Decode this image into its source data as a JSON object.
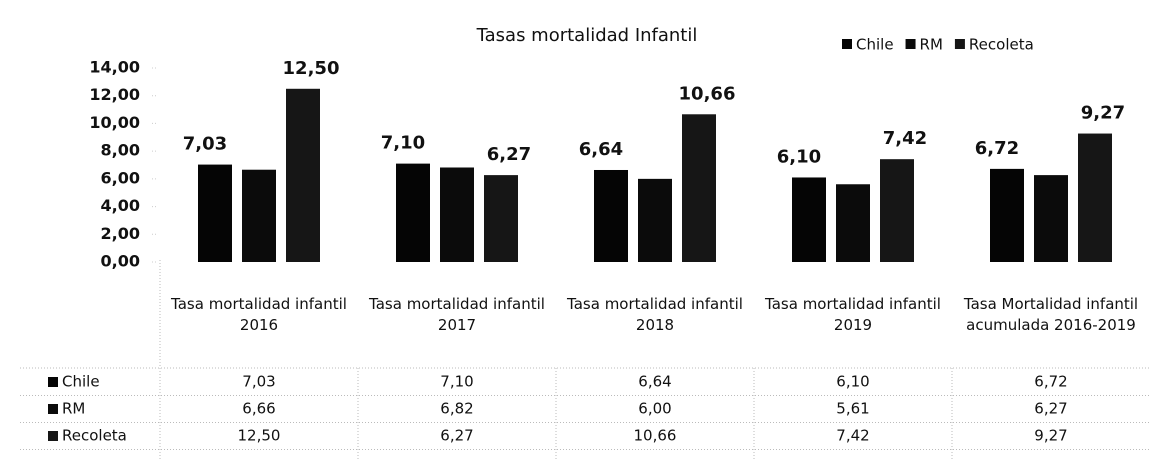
{
  "chart_data": {
    "type": "bar",
    "title": "Tasas mortalidad Infantil",
    "categories": [
      "Tasa mortalidad infantil 2016",
      "Tasa mortalidad infantil 2017",
      "Tasa mortalidad infantil 2018",
      "Tasa mortalidad infantil 2019",
      "Tasa Mortalidad infantil acumulada 2016-2019"
    ],
    "series": [
      {
        "name": "Chile",
        "color": "#050505",
        "show_labels": true,
        "values": [
          7.03,
          7.1,
          6.64,
          6.1,
          6.72
        ],
        "value_labels": [
          "7,03",
          "7,10",
          "6,64",
          "6,10",
          "6,72"
        ]
      },
      {
        "name": "RM",
        "color": "#0b0b0b",
        "show_labels": false,
        "values": [
          6.66,
          6.82,
          6.0,
          5.61,
          6.27
        ],
        "value_labels": [
          "6,66",
          "6,82",
          "6,00",
          "5,61",
          "6,27"
        ]
      },
      {
        "name": "Recoleta",
        "color": "#161616",
        "show_labels": true,
        "values": [
          12.5,
          6.27,
          10.66,
          7.42,
          9.27
        ],
        "value_labels": [
          "12,50",
          "6,27",
          "10,66",
          "7,42",
          "9,27"
        ]
      }
    ],
    "ylim": [
      0,
      14
    ],
    "yticks": [
      {
        "value": 0,
        "label": "0,00"
      },
      {
        "value": 2,
        "label": "2,00"
      },
      {
        "value": 4,
        "label": "4,00"
      },
      {
        "value": 6,
        "label": "6,00"
      },
      {
        "value": 8,
        "label": "8,00"
      },
      {
        "value": 10,
        "label": "10,00"
      },
      {
        "value": 12,
        "label": "12,00"
      },
      {
        "value": 14,
        "label": "14,00"
      }
    ],
    "legend": "top-right",
    "data_table": true
  }
}
